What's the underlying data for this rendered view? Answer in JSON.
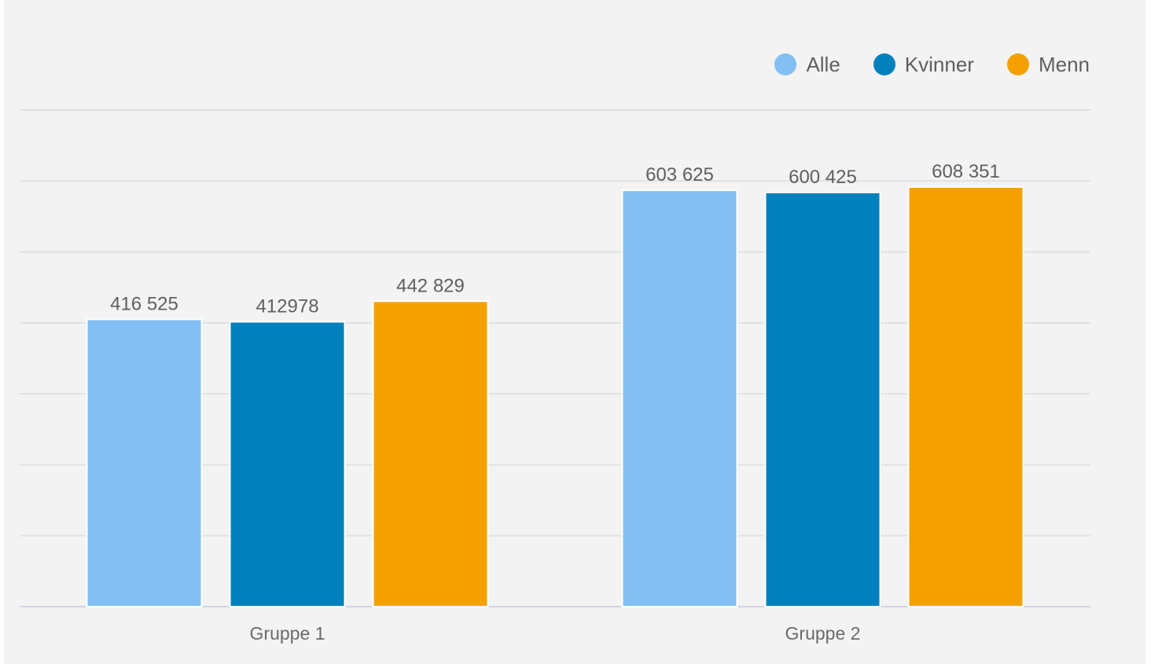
{
  "chart_data": {
    "type": "bar",
    "categories": [
      "Gruppe 1",
      "Gruppe 2"
    ],
    "series": [
      {
        "name": "Alle",
        "color": "#83bff3",
        "values": [
          416525,
          603625
        ],
        "labels": [
          "416 525",
          "603 625"
        ]
      },
      {
        "name": "Kvinner",
        "color": "#0080bc",
        "values": [
          412978,
          600425
        ],
        "labels": [
          "412978",
          "600 425"
        ]
      },
      {
        "name": "Menn",
        "color": "#f4a100",
        "values": [
          442829,
          608351
        ],
        "labels": [
          "442 829",
          "608 351"
        ]
      }
    ],
    "ylim": [
      0,
      720000
    ],
    "grid": true,
    "legend_position": "top-right"
  }
}
